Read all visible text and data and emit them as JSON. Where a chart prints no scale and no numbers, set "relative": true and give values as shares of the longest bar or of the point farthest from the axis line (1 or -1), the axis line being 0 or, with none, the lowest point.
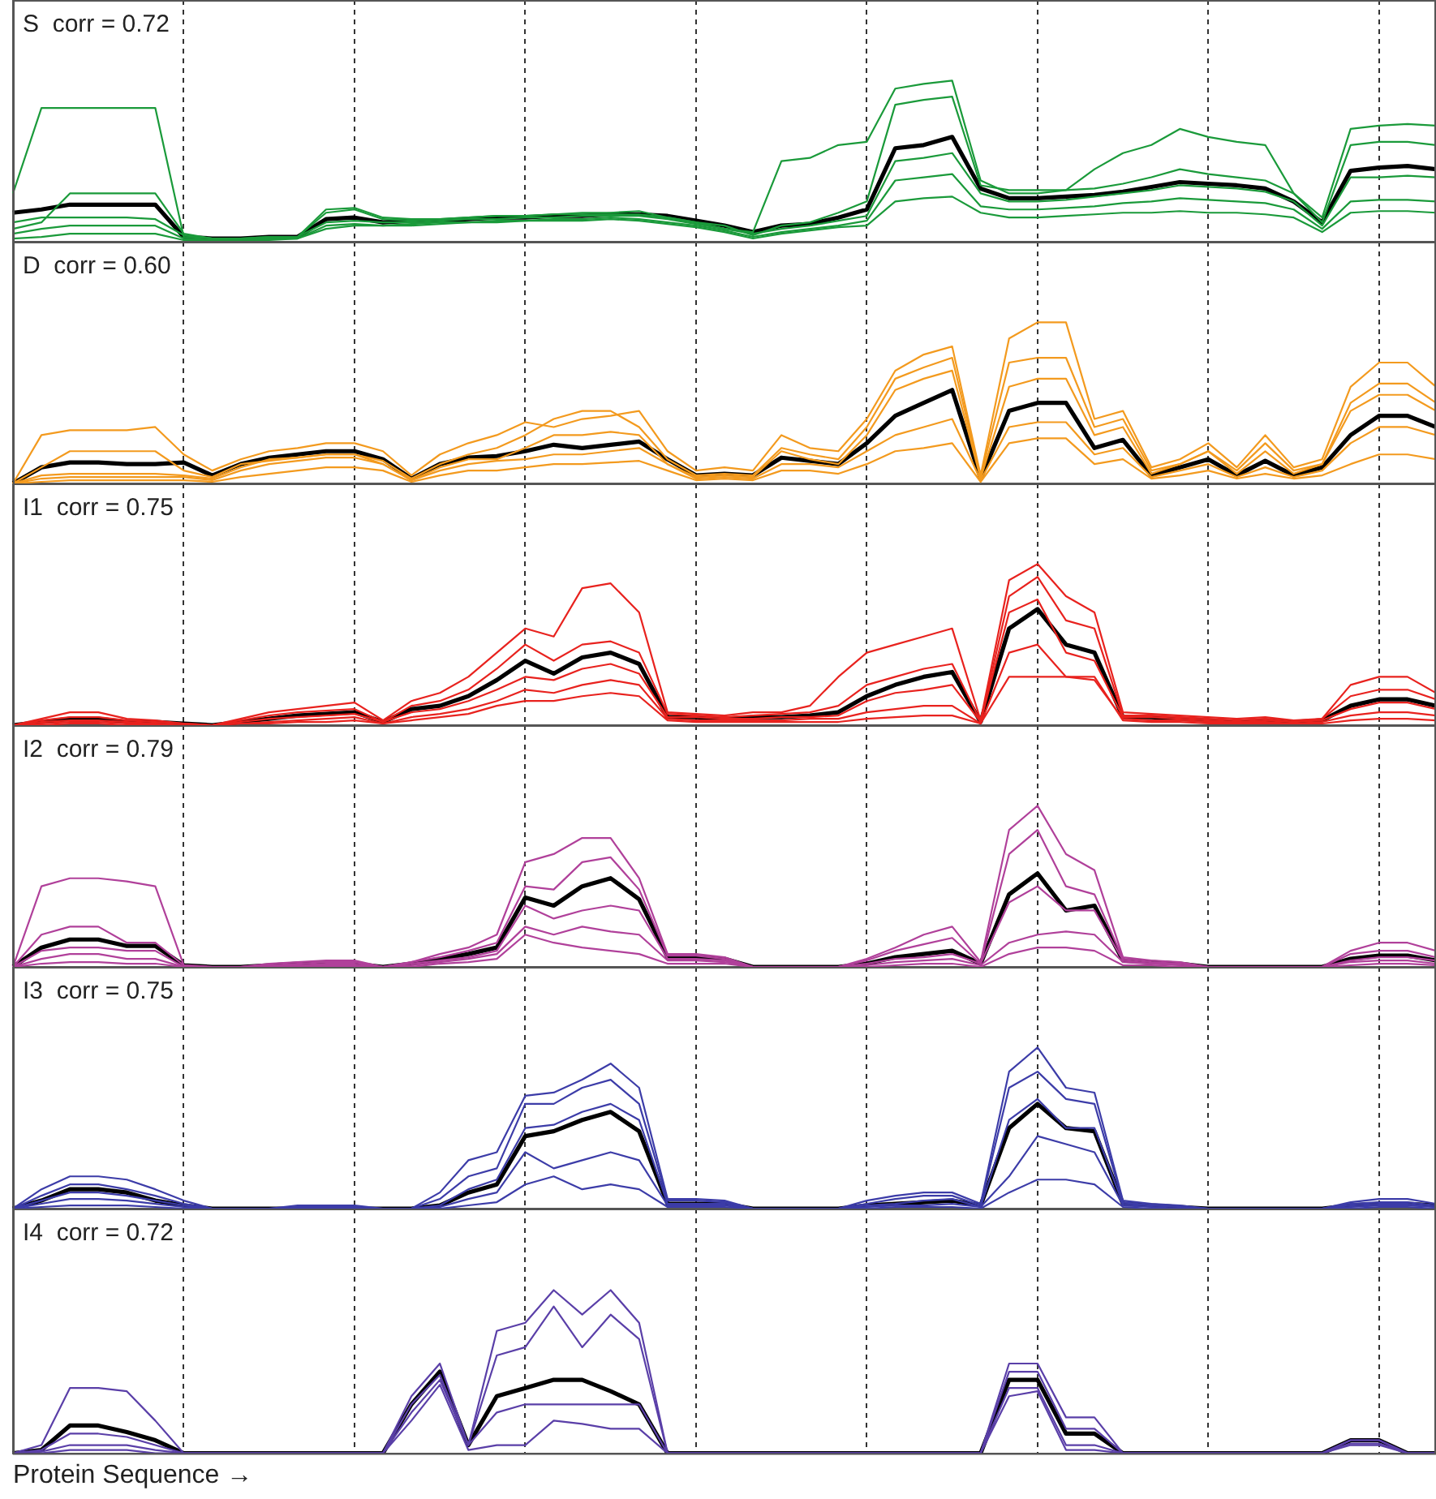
{
  "chart_data": [
    {
      "type": "line",
      "title": "S  corr = 0.72",
      "relative": true,
      "grid": "x",
      "tick_labels": false,
      "marker": "none",
      "categories": [
        null,
        null,
        null,
        null,
        null,
        null,
        null,
        null,
        null,
        null,
        null,
        null,
        null,
        null,
        null,
        null,
        null,
        null,
        null,
        null,
        null,
        null,
        null,
        null,
        null,
        null,
        null,
        null,
        null,
        null,
        null,
        null,
        null,
        null,
        null,
        null,
        null,
        null,
        null,
        null,
        null,
        null,
        null,
        null,
        null,
        null,
        null,
        null,
        null,
        null,
        null
      ],
      "series": [
        {
          "color": "#1a9a3a",
          "values": [
            0.3,
            0.83,
            0.83,
            0.83,
            0.83,
            0.83,
            0.03,
            0.02,
            0.02,
            0.03,
            0.03,
            0.2,
            0.21,
            0.15,
            0.14,
            0.14,
            0.15,
            0.16,
            0.16,
            0.17,
            0.18,
            0.18,
            0.19,
            0.15,
            0.12,
            0.08,
            0.06,
            0.5,
            0.52,
            0.6,
            0.62,
            0.95,
            0.98,
            1.0,
            0.38,
            0.3,
            0.3,
            0.32,
            0.45,
            0.55,
            0.6,
            0.7,
            0.65,
            0.62,
            0.6,
            0.3,
            0.15,
            0.7,
            0.72,
            0.73,
            0.72
          ]
        },
        {
          "color": "#1a9a3a",
          "values": [
            0.08,
            0.12,
            0.3,
            0.3,
            0.3,
            0.3,
            0.05,
            0.02,
            0.02,
            0.03,
            0.03,
            0.18,
            0.2,
            0.14,
            0.13,
            0.14,
            0.15,
            0.16,
            0.16,
            0.17,
            0.17,
            0.17,
            0.17,
            0.15,
            0.12,
            0.1,
            0.04,
            0.1,
            0.12,
            0.18,
            0.25,
            0.85,
            0.88,
            0.9,
            0.35,
            0.32,
            0.32,
            0.32,
            0.33,
            0.36,
            0.4,
            0.45,
            0.42,
            0.4,
            0.38,
            0.3,
            0.12,
            0.6,
            0.62,
            0.62,
            0.6
          ]
        },
        {
          "color": "#1a9a3a",
          "values": [
            0.12,
            0.15,
            0.15,
            0.15,
            0.15,
            0.14,
            0.04,
            0.02,
            0.02,
            0.02,
            0.03,
            0.12,
            0.13,
            0.12,
            0.12,
            0.13,
            0.14,
            0.14,
            0.15,
            0.15,
            0.16,
            0.16,
            0.16,
            0.14,
            0.11,
            0.08,
            0.05,
            0.08,
            0.1,
            0.13,
            0.16,
            0.5,
            0.52,
            0.55,
            0.3,
            0.25,
            0.25,
            0.26,
            0.28,
            0.3,
            0.32,
            0.35,
            0.34,
            0.33,
            0.31,
            0.25,
            0.1,
            0.4,
            0.4,
            0.41,
            0.4
          ]
        },
        {
          "color": "#1a9a3a",
          "values": [
            0.05,
            0.08,
            0.1,
            0.1,
            0.1,
            0.1,
            0.02,
            0.01,
            0.01,
            0.02,
            0.02,
            0.1,
            0.11,
            0.1,
            0.11,
            0.12,
            0.12,
            0.13,
            0.13,
            0.14,
            0.14,
            0.15,
            0.14,
            0.12,
            0.1,
            0.07,
            0.03,
            0.06,
            0.08,
            0.1,
            0.13,
            0.38,
            0.4,
            0.42,
            0.22,
            0.2,
            0.2,
            0.21,
            0.22,
            0.24,
            0.25,
            0.27,
            0.26,
            0.25,
            0.24,
            0.2,
            0.08,
            0.25,
            0.26,
            0.26,
            0.25
          ]
        },
        {
          "color": "#1a9a3a",
          "values": [
            0.02,
            0.03,
            0.05,
            0.05,
            0.05,
            0.05,
            0.01,
            0.01,
            0.01,
            0.01,
            0.02,
            0.08,
            0.1,
            0.1,
            0.1,
            0.11,
            0.12,
            0.12,
            0.13,
            0.13,
            0.13,
            0.14,
            0.13,
            0.11,
            0.09,
            0.06,
            0.02,
            0.05,
            0.07,
            0.09,
            0.1,
            0.25,
            0.27,
            0.28,
            0.18,
            0.15,
            0.15,
            0.16,
            0.17,
            0.18,
            0.18,
            0.19,
            0.18,
            0.18,
            0.17,
            0.15,
            0.06,
            0.18,
            0.19,
            0.19,
            0.18
          ]
        },
        {
          "color": "#000000",
          "values": [
            0.18,
            0.2,
            0.23,
            0.23,
            0.23,
            0.23,
            0.03,
            0.02,
            0.02,
            0.03,
            0.03,
            0.14,
            0.15,
            0.12,
            0.13,
            0.13,
            0.14,
            0.15,
            0.15,
            0.16,
            0.16,
            0.17,
            0.17,
            0.16,
            0.13,
            0.1,
            0.06,
            0.1,
            0.11,
            0.15,
            0.2,
            0.58,
            0.6,
            0.65,
            0.33,
            0.27,
            0.27,
            0.28,
            0.29,
            0.31,
            0.34,
            0.37,
            0.36,
            0.35,
            0.33,
            0.25,
            0.12,
            0.44,
            0.46,
            0.47,
            0.45
          ]
        }
      ]
    },
    {
      "type": "line",
      "title": "D  corr = 0.60",
      "relative": true,
      "grid": "x",
      "tick_labels": false,
      "marker": "none",
      "categories": [
        null,
        null,
        null,
        null,
        null,
        null,
        null,
        null,
        null,
        null,
        null,
        null,
        null,
        null,
        null,
        null,
        null,
        null,
        null,
        null,
        null,
        null,
        null,
        null,
        null,
        null,
        null,
        null,
        null,
        null,
        null,
        null,
        null,
        null,
        null,
        null,
        null,
        null,
        null,
        null,
        null,
        null,
        null,
        null,
        null,
        null,
        null,
        null,
        null,
        null,
        null
      ],
      "series": [
        {
          "color": "#f39a1e",
          "values": [
            0,
            0.3,
            0.33,
            0.33,
            0.33,
            0.35,
            0.18,
            0.08,
            0.15,
            0.2,
            0.22,
            0.25,
            0.25,
            0.2,
            0.05,
            0.18,
            0.25,
            0.3,
            0.38,
            0.35,
            0.4,
            0.42,
            0.45,
            0.2,
            0.08,
            0.1,
            0.08,
            0.3,
            0.22,
            0.2,
            0.4,
            0.7,
            0.8,
            0.85,
            0.05,
            0.9,
            1.0,
            1.0,
            0.4,
            0.45,
            0.1,
            0.15,
            0.25,
            0.1,
            0.3,
            0.1,
            0.15,
            0.6,
            0.75,
            0.75,
            0.6
          ]
        },
        {
          "color": "#f39a1e",
          "values": [
            0,
            0.05,
            0.06,
            0.06,
            0.06,
            0.06,
            0.05,
            0.03,
            0.1,
            0.15,
            0.16,
            0.18,
            0.18,
            0.12,
            0.02,
            0.1,
            0.15,
            0.15,
            0.22,
            0.3,
            0.3,
            0.32,
            0.3,
            0.12,
            0.04,
            0.05,
            0.04,
            0.2,
            0.15,
            0.12,
            0.3,
            0.58,
            0.65,
            0.7,
            0.03,
            0.6,
            0.65,
            0.65,
            0.3,
            0.35,
            0.06,
            0.12,
            0.2,
            0.06,
            0.2,
            0.06,
            0.12,
            0.45,
            0.55,
            0.55,
            0.45
          ]
        },
        {
          "color": "#f39a1e",
          "values": [
            0,
            0.03,
            0.04,
            0.04,
            0.04,
            0.04,
            0.04,
            0.02,
            0.08,
            0.12,
            0.14,
            0.16,
            0.16,
            0.12,
            0.02,
            0.08,
            0.12,
            0.14,
            0.15,
            0.18,
            0.18,
            0.2,
            0.22,
            0.12,
            0.03,
            0.04,
            0.03,
            0.12,
            0.12,
            0.1,
            0.2,
            0.3,
            0.35,
            0.4,
            0.02,
            0.35,
            0.38,
            0.38,
            0.18,
            0.22,
            0.04,
            0.08,
            0.12,
            0.04,
            0.1,
            0.04,
            0.08,
            0.25,
            0.35,
            0.35,
            0.3
          ]
        },
        {
          "color": "#f39a1e",
          "values": [
            0,
            0.01,
            0.02,
            0.02,
            0.02,
            0.02,
            0.02,
            0.01,
            0.04,
            0.06,
            0.08,
            0.1,
            0.1,
            0.08,
            0.01,
            0.05,
            0.08,
            0.08,
            0.1,
            0.12,
            0.12,
            0.13,
            0.14,
            0.08,
            0.02,
            0.03,
            0.02,
            0.08,
            0.08,
            0.06,
            0.12,
            0.2,
            0.22,
            0.25,
            0.01,
            0.25,
            0.28,
            0.28,
            0.12,
            0.15,
            0.03,
            0.05,
            0.08,
            0.03,
            0.06,
            0.03,
            0.05,
            0.12,
            0.18,
            0.18,
            0.15
          ]
        },
        {
          "color": "#f39a1e",
          "values": [
            0,
            0.1,
            0.2,
            0.2,
            0.2,
            0.2,
            0.08,
            0.04,
            0.12,
            0.14,
            0.16,
            0.18,
            0.18,
            0.14,
            0.03,
            0.12,
            0.18,
            0.22,
            0.3,
            0.4,
            0.45,
            0.45,
            0.35,
            0.15,
            0.05,
            0.06,
            0.05,
            0.22,
            0.18,
            0.15,
            0.35,
            0.65,
            0.72,
            0.78,
            0.04,
            0.75,
            0.78,
            0.78,
            0.35,
            0.4,
            0.08,
            0.12,
            0.2,
            0.08,
            0.25,
            0.08,
            0.12,
            0.5,
            0.62,
            0.62,
            0.5
          ]
        },
        {
          "color": "#000000",
          "values": [
            0,
            0.1,
            0.13,
            0.13,
            0.12,
            0.12,
            0.13,
            0.05,
            0.12,
            0.16,
            0.18,
            0.2,
            0.2,
            0.15,
            0.03,
            0.12,
            0.16,
            0.17,
            0.2,
            0.24,
            0.22,
            0.24,
            0.26,
            0.15,
            0.05,
            0.06,
            0.05,
            0.16,
            0.14,
            0.12,
            0.25,
            0.42,
            0.5,
            0.58,
            0.03,
            0.45,
            0.5,
            0.5,
            0.22,
            0.27,
            0.05,
            0.1,
            0.15,
            0.05,
            0.14,
            0.05,
            0.1,
            0.3,
            0.42,
            0.42,
            0.35
          ]
        }
      ]
    },
    {
      "type": "line",
      "title": "I1  corr = 0.75",
      "relative": true,
      "grid": "x",
      "tick_labels": false,
      "marker": "none",
      "categories": [
        null,
        null,
        null,
        null,
        null,
        null,
        null,
        null,
        null,
        null,
        null,
        null,
        null,
        null,
        null,
        null,
        null,
        null,
        null,
        null,
        null,
        null,
        null,
        null,
        null,
        null,
        null,
        null,
        null,
        null,
        null,
        null,
        null,
        null,
        null,
        null,
        null,
        null,
        null,
        null,
        null,
        null,
        null,
        null,
        null,
        null,
        null,
        null,
        null,
        null,
        null
      ],
      "series": [
        {
          "color": "#e8221e",
          "values": [
            0,
            0.04,
            0.08,
            0.08,
            0.04,
            0.03,
            0.01,
            0,
            0.04,
            0.08,
            0.1,
            0.12,
            0.14,
            0.03,
            0.15,
            0.2,
            0.3,
            0.45,
            0.6,
            0.55,
            0.85,
            0.88,
            0.7,
            0.08,
            0.07,
            0.06,
            0.08,
            0.08,
            0.12,
            0.3,
            0.45,
            0.5,
            0.55,
            0.6,
            0.03,
            0.9,
            1.0,
            0.8,
            0.7,
            0.08,
            0.07,
            0.06,
            0.05,
            0.04,
            0.05,
            0.03,
            0.04,
            0.25,
            0.3,
            0.3,
            0.2
          ]
        },
        {
          "color": "#e8221e",
          "values": [
            0,
            0.03,
            0.05,
            0.05,
            0.03,
            0.02,
            0.01,
            0,
            0.03,
            0.06,
            0.08,
            0.09,
            0.1,
            0.02,
            0.12,
            0.15,
            0.22,
            0.35,
            0.5,
            0.4,
            0.5,
            0.52,
            0.45,
            0.07,
            0.06,
            0.05,
            0.06,
            0.07,
            0.08,
            0.12,
            0.25,
            0.3,
            0.35,
            0.38,
            0.02,
            0.8,
            0.92,
            0.65,
            0.6,
            0.06,
            0.06,
            0.05,
            0.04,
            0.03,
            0.04,
            0.02,
            0.04,
            0.18,
            0.22,
            0.22,
            0.16
          ]
        },
        {
          "color": "#e8221e",
          "values": [
            0,
            0.02,
            0.03,
            0.03,
            0.02,
            0.01,
            0,
            0,
            0.02,
            0.04,
            0.05,
            0.06,
            0.07,
            0.02,
            0.08,
            0.1,
            0.15,
            0.22,
            0.3,
            0.28,
            0.35,
            0.38,
            0.32,
            0.05,
            0.05,
            0.04,
            0.04,
            0.05,
            0.05,
            0.06,
            0.15,
            0.2,
            0.22,
            0.25,
            0.02,
            0.7,
            0.78,
            0.45,
            0.4,
            0.05,
            0.05,
            0.04,
            0.03,
            0.02,
            0.03,
            0.02,
            0.03,
            0.1,
            0.14,
            0.14,
            0.1
          ]
        },
        {
          "color": "#e8221e",
          "values": [
            0,
            0.01,
            0.02,
            0.02,
            0.01,
            0.01,
            0,
            0,
            0.01,
            0.02,
            0.03,
            0.04,
            0.05,
            0.01,
            0.05,
            0.07,
            0.1,
            0.15,
            0.22,
            0.2,
            0.25,
            0.28,
            0.25,
            0.04,
            0.03,
            0.03,
            0.03,
            0.03,
            0.04,
            0.04,
            0.08,
            0.1,
            0.12,
            0.12,
            0.01,
            0.45,
            0.5,
            0.3,
            0.28,
            0.04,
            0.03,
            0.03,
            0.02,
            0.02,
            0.02,
            0.01,
            0.02,
            0.06,
            0.08,
            0.08,
            0.06
          ]
        },
        {
          "color": "#e8221e",
          "values": [
            0,
            0,
            0.01,
            0.01,
            0,
            0,
            0,
            0,
            0.01,
            0.01,
            0.02,
            0.02,
            0.03,
            0.01,
            0.03,
            0.05,
            0.07,
            0.12,
            0.15,
            0.15,
            0.18,
            0.2,
            0.18,
            0.03,
            0.02,
            0.02,
            0.02,
            0.02,
            0.02,
            0.02,
            0.04,
            0.05,
            0.06,
            0.06,
            0.01,
            0.3,
            0.3,
            0.3,
            0.3,
            0.03,
            0.02,
            0.02,
            0.01,
            0.01,
            0.01,
            0.01,
            0.01,
            0.03,
            0.04,
            0.04,
            0.03
          ]
        },
        {
          "color": "#000000",
          "values": [
            0,
            0.02,
            0.04,
            0.04,
            0.02,
            0.02,
            0.01,
            0,
            0.02,
            0.04,
            0.06,
            0.07,
            0.08,
            0.02,
            0.1,
            0.12,
            0.18,
            0.28,
            0.4,
            0.32,
            0.42,
            0.45,
            0.38,
            0.05,
            0.05,
            0.04,
            0.05,
            0.05,
            0.06,
            0.08,
            0.18,
            0.25,
            0.3,
            0.33,
            0.02,
            0.6,
            0.72,
            0.5,
            0.45,
            0.05,
            0.05,
            0.04,
            0.03,
            0.02,
            0.03,
            0.02,
            0.03,
            0.12,
            0.16,
            0.16,
            0.12
          ]
        }
      ]
    },
    {
      "type": "line",
      "title": "I2  corr = 0.79",
      "relative": true,
      "grid": "x",
      "tick_labels": false,
      "marker": "none",
      "categories": [
        null,
        null,
        null,
        null,
        null,
        null,
        null,
        null,
        null,
        null,
        null,
        null,
        null,
        null,
        null,
        null,
        null,
        null,
        null,
        null,
        null,
        null,
        null,
        null,
        null,
        null,
        null,
        null,
        null,
        null,
        null,
        null,
        null,
        null,
        null,
        null,
        null,
        null,
        null,
        null,
        null,
        null,
        null,
        null,
        null,
        null,
        null,
        null,
        null,
        null,
        null
      ],
      "series": [
        {
          "color": "#b0409a",
          "values": [
            0,
            0.5,
            0.55,
            0.55,
            0.53,
            0.5,
            0.01,
            0,
            0,
            0.02,
            0.03,
            0.04,
            0.04,
            0,
            0.03,
            0.08,
            0.12,
            0.2,
            0.65,
            0.7,
            0.8,
            0.8,
            0.55,
            0.08,
            0.08,
            0.06,
            0,
            0,
            0,
            0,
            0.05,
            0.12,
            0.2,
            0.25,
            0.03,
            0.85,
            1.0,
            0.7,
            0.6,
            0.06,
            0.04,
            0.03,
            0,
            0,
            0,
            0,
            0,
            0.1,
            0.15,
            0.15,
            0.1
          ]
        },
        {
          "color": "#b0409a",
          "values": [
            0,
            0.2,
            0.25,
            0.25,
            0.15,
            0.15,
            0.01,
            0,
            0,
            0.01,
            0.02,
            0.03,
            0.03,
            0,
            0.03,
            0.06,
            0.1,
            0.15,
            0.5,
            0.48,
            0.65,
            0.68,
            0.48,
            0.07,
            0.07,
            0.05,
            0,
            0,
            0,
            0,
            0.04,
            0.1,
            0.14,
            0.18,
            0.02,
            0.7,
            0.85,
            0.5,
            0.45,
            0.05,
            0.03,
            0.02,
            0,
            0,
            0,
            0,
            0,
            0.08,
            0.1,
            0.1,
            0.06
          ]
        },
        {
          "color": "#b0409a",
          "values": [
            0,
            0.1,
            0.12,
            0.12,
            0.1,
            0.1,
            0,
            0,
            0,
            0.01,
            0.01,
            0.02,
            0.02,
            0,
            0.02,
            0.04,
            0.06,
            0.1,
            0.38,
            0.3,
            0.35,
            0.38,
            0.35,
            0.05,
            0.05,
            0.04,
            0,
            0,
            0,
            0,
            0.02,
            0.05,
            0.06,
            0.08,
            0.02,
            0.4,
            0.5,
            0.35,
            0.35,
            0.04,
            0.02,
            0.02,
            0,
            0,
            0,
            0,
            0,
            0.04,
            0.06,
            0.06,
            0.04
          ]
        },
        {
          "color": "#b0409a",
          "values": [
            0,
            0.05,
            0.08,
            0.08,
            0.05,
            0.05,
            0,
            0,
            0,
            0,
            0.01,
            0.01,
            0.01,
            0,
            0.01,
            0.03,
            0.05,
            0.08,
            0.25,
            0.2,
            0.25,
            0.22,
            0.2,
            0.04,
            0.04,
            0.03,
            0,
            0,
            0,
            0,
            0.01,
            0.03,
            0.04,
            0.05,
            0.01,
            0.15,
            0.2,
            0.22,
            0.2,
            0.03,
            0.02,
            0.01,
            0,
            0,
            0,
            0,
            0,
            0.03,
            0.04,
            0.04,
            0.02
          ]
        },
        {
          "color": "#b0409a",
          "values": [
            0,
            0.02,
            0.03,
            0.03,
            0.02,
            0.02,
            0,
            0,
            0,
            0,
            0,
            0,
            0,
            0,
            0,
            0.02,
            0.03,
            0.05,
            0.2,
            0.15,
            0.12,
            0.1,
            0.08,
            0.02,
            0.02,
            0.02,
            0,
            0,
            0,
            0,
            0,
            0.01,
            0.02,
            0.02,
            0,
            0.08,
            0.12,
            0.12,
            0.1,
            0.01,
            0.01,
            0,
            0,
            0,
            0,
            0,
            0,
            0.01,
            0.02,
            0.02,
            0.01
          ]
        },
        {
          "color": "#000000",
          "values": [
            0,
            0.12,
            0.17,
            0.17,
            0.13,
            0.13,
            0.01,
            0,
            0,
            0.01,
            0.02,
            0.02,
            0.02,
            0,
            0.02,
            0.05,
            0.08,
            0.12,
            0.43,
            0.38,
            0.5,
            0.55,
            0.42,
            0.06,
            0.06,
            0.05,
            0,
            0,
            0,
            0,
            0.02,
            0.06,
            0.08,
            0.1,
            0.02,
            0.45,
            0.58,
            0.35,
            0.38,
            0.04,
            0.03,
            0.02,
            0,
            0,
            0,
            0,
            0,
            0.05,
            0.07,
            0.07,
            0.04
          ]
        }
      ]
    },
    {
      "type": "line",
      "title": "I3  corr = 0.75",
      "relative": true,
      "grid": "x",
      "tick_labels": false,
      "marker": "none",
      "categories": [
        null,
        null,
        null,
        null,
        null,
        null,
        null,
        null,
        null,
        null,
        null,
        null,
        null,
        null,
        null,
        null,
        null,
        null,
        null,
        null,
        null,
        null,
        null,
        null,
        null,
        null,
        null,
        null,
        null,
        null,
        null,
        null,
        null,
        null,
        null,
        null,
        null,
        null,
        null,
        null,
        null,
        null,
        null,
        null,
        null,
        null,
        null,
        null,
        null,
        null,
        null
      ],
      "series": [
        {
          "color": "#3c3ca8",
          "values": [
            0,
            0.12,
            0.2,
            0.2,
            0.18,
            0.12,
            0.05,
            0,
            0,
            0,
            0.02,
            0.02,
            0.02,
            0,
            0,
            0.1,
            0.3,
            0.35,
            0.7,
            0.72,
            0.8,
            0.9,
            0.75,
            0.06,
            0.06,
            0.05,
            0,
            0,
            0,
            0,
            0.05,
            0.08,
            0.1,
            0.1,
            0.03,
            0.85,
            1.0,
            0.75,
            0.72,
            0.05,
            0.03,
            0.02,
            0,
            0,
            0,
            0,
            0,
            0.04,
            0.06,
            0.06,
            0.03
          ]
        },
        {
          "color": "#3c3ca8",
          "values": [
            0,
            0.08,
            0.15,
            0.15,
            0.12,
            0.08,
            0.03,
            0,
            0,
            0,
            0.01,
            0.01,
            0.01,
            0,
            0,
            0.06,
            0.2,
            0.25,
            0.65,
            0.65,
            0.75,
            0.8,
            0.65,
            0.05,
            0.05,
            0.04,
            0,
            0,
            0,
            0,
            0.03,
            0.06,
            0.08,
            0.08,
            0.02,
            0.75,
            0.85,
            0.68,
            0.65,
            0.04,
            0.02,
            0.01,
            0,
            0,
            0,
            0,
            0,
            0.03,
            0.04,
            0.04,
            0.02
          ]
        },
        {
          "color": "#3c3ca8",
          "values": [
            0,
            0.05,
            0.1,
            0.1,
            0.08,
            0.05,
            0.02,
            0,
            0,
            0,
            0,
            0,
            0,
            0,
            0,
            0.02,
            0.12,
            0.18,
            0.5,
            0.52,
            0.6,
            0.65,
            0.55,
            0.03,
            0.03,
            0.03,
            0,
            0,
            0,
            0,
            0.02,
            0.03,
            0.05,
            0.06,
            0.01,
            0.55,
            0.68,
            0.5,
            0.5,
            0.03,
            0.02,
            0.01,
            0,
            0,
            0,
            0,
            0,
            0.02,
            0.03,
            0.03,
            0.01
          ]
        },
        {
          "color": "#3c3ca8",
          "values": [
            0,
            0.03,
            0.06,
            0.06,
            0.05,
            0.03,
            0.01,
            0,
            0,
            0,
            0,
            0,
            0,
            0,
            0,
            0.01,
            0.06,
            0.1,
            0.35,
            0.25,
            0.3,
            0.35,
            0.3,
            0.02,
            0.02,
            0.02,
            0,
            0,
            0,
            0,
            0.01,
            0.02,
            0.02,
            0.03,
            0.01,
            0.2,
            0.45,
            0.4,
            0.35,
            0.02,
            0.01,
            0,
            0,
            0,
            0,
            0,
            0,
            0.01,
            0.02,
            0.02,
            0.01
          ]
        },
        {
          "color": "#3c3ca8",
          "values": [
            0,
            0.01,
            0.02,
            0.02,
            0.02,
            0.01,
            0,
            0,
            0,
            0,
            0,
            0,
            0,
            0,
            0,
            0,
            0.02,
            0.04,
            0.15,
            0.2,
            0.12,
            0.15,
            0.12,
            0.01,
            0.01,
            0.01,
            0,
            0,
            0,
            0,
            0,
            0.01,
            0.01,
            0.01,
            0,
            0.1,
            0.18,
            0.18,
            0.15,
            0.01,
            0,
            0,
            0,
            0,
            0,
            0,
            0,
            0,
            0.01,
            0.01,
            0
          ]
        },
        {
          "color": "#000000",
          "values": [
            0,
            0.05,
            0.12,
            0.12,
            0.1,
            0.05,
            0.02,
            0,
            0,
            0,
            0,
            0,
            0,
            0,
            0,
            0.02,
            0.1,
            0.15,
            0.45,
            0.48,
            0.55,
            0.6,
            0.48,
            0.03,
            0.03,
            0.03,
            0,
            0,
            0,
            0,
            0.02,
            0.03,
            0.04,
            0.05,
            0.02,
            0.5,
            0.65,
            0.5,
            0.48,
            0.03,
            0.02,
            0.01,
            0,
            0,
            0,
            0,
            0,
            0.02,
            0.03,
            0.03,
            0.02
          ]
        }
      ]
    },
    {
      "type": "line",
      "title": "I4  corr = 0.72",
      "xlabel": "Protein Sequence →",
      "relative": true,
      "grid": "x",
      "tick_labels": false,
      "marker": "none",
      "categories": [
        null,
        null,
        null,
        null,
        null,
        null,
        null,
        null,
        null,
        null,
        null,
        null,
        null,
        null,
        null,
        null,
        null,
        null,
        null,
        null,
        null,
        null,
        null,
        null,
        null,
        null,
        null,
        null,
        null,
        null,
        null,
        null,
        null,
        null,
        null,
        null,
        null,
        null,
        null,
        null,
        null,
        null,
        null,
        null,
        null,
        null,
        null,
        null,
        null,
        null,
        null
      ],
      "series": [
        {
          "color": "#5a3fa8",
          "values": [
            0,
            0.05,
            0.4,
            0.4,
            0.38,
            0.2,
            0,
            0,
            0,
            0,
            0,
            0,
            0,
            0,
            0.35,
            0.55,
            0.05,
            0.75,
            0.8,
            1.0,
            0.85,
            1.0,
            0.8,
            0,
            0,
            0,
            0,
            0,
            0,
            0,
            0,
            0,
            0,
            0,
            0,
            0.55,
            0.55,
            0.22,
            0.22,
            0,
            0,
            0,
            0,
            0,
            0,
            0,
            0,
            0.08,
            0.08,
            0,
            0
          ]
        },
        {
          "color": "#5a3fa8",
          "values": [
            0,
            0.02,
            0.12,
            0.12,
            0.1,
            0.05,
            0,
            0,
            0,
            0,
            0,
            0,
            0,
            0,
            0.3,
            0.48,
            0.05,
            0.6,
            0.65,
            0.9,
            0.65,
            0.85,
            0.7,
            0,
            0,
            0,
            0,
            0,
            0,
            0,
            0,
            0,
            0,
            0,
            0,
            0.5,
            0.5,
            0.15,
            0.15,
            0,
            0,
            0,
            0,
            0,
            0,
            0,
            0,
            0.08,
            0.08,
            0,
            0
          ]
        },
        {
          "color": "#5a3fa8",
          "values": [
            0,
            0.01,
            0.05,
            0.05,
            0.05,
            0.02,
            0,
            0,
            0,
            0,
            0,
            0,
            0,
            0,
            0.25,
            0.45,
            0.05,
            0.25,
            0.3,
            0.3,
            0.3,
            0.3,
            0.3,
            0,
            0,
            0,
            0,
            0,
            0,
            0,
            0,
            0,
            0,
            0,
            0,
            0.4,
            0.4,
            0.05,
            0.05,
            0,
            0,
            0,
            0,
            0,
            0,
            0,
            0,
            0.06,
            0.06,
            0,
            0
          ]
        },
        {
          "color": "#5a3fa8",
          "values": [
            0,
            0,
            0.02,
            0.02,
            0.02,
            0,
            0,
            0,
            0,
            0,
            0,
            0,
            0,
            0,
            0.2,
            0.42,
            0.02,
            0.05,
            0.05,
            0.2,
            0.18,
            0.15,
            0.15,
            0,
            0,
            0,
            0,
            0,
            0,
            0,
            0,
            0,
            0,
            0,
            0,
            0.35,
            0.38,
            0.02,
            0.02,
            0,
            0,
            0,
            0,
            0,
            0,
            0,
            0,
            0.05,
            0.05,
            0,
            0
          ]
        },
        {
          "color": "#000000",
          "values": [
            0,
            0.02,
            0.17,
            0.17,
            0.13,
            0.08,
            0,
            0,
            0,
            0,
            0,
            0,
            0,
            0,
            0.3,
            0.5,
            0.05,
            0.35,
            0.4,
            0.45,
            0.45,
            0.38,
            0.3,
            0,
            0,
            0,
            0,
            0,
            0,
            0,
            0,
            0,
            0,
            0,
            0,
            0.45,
            0.45,
            0.12,
            0.12,
            0,
            0,
            0,
            0,
            0,
            0,
            0,
            0,
            0.08,
            0.08,
            0,
            0
          ]
        }
      ]
    }
  ]
}
